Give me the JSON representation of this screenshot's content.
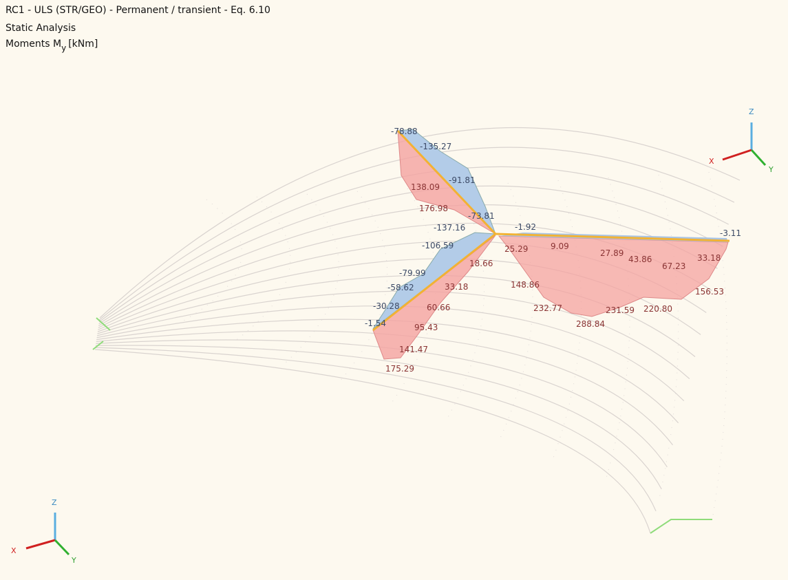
{
  "header": {
    "lines": [
      "RC1 - ULS (STR/GEO) - Permanent / transient - Eq. 6.10",
      "Static Analysis"
    ],
    "moments_label": {
      "text": "Moments M",
      "subscript": "y",
      "unit": "[kNm]"
    }
  },
  "result_labels": {
    "negative": [
      "-78.88",
      "-135.27",
      "-91.81",
      "-73.81",
      "-137.16",
      "-106.59",
      "-79.99",
      "-58.62",
      "-30.28",
      "-1.54",
      "-1.92",
      "-3.11"
    ],
    "positive": [
      "138.09",
      "176.98",
      "25.29",
      "9.09",
      "27.89",
      "43.86",
      "67.23",
      "33.18",
      "156.53",
      "148.86",
      "232.77",
      "288.84",
      "231.59",
      "220.80",
      "18.66",
      "33.18",
      "60.66",
      "95.43",
      "141.47",
      "175.29"
    ]
  },
  "axes_top": {
    "z": "Z",
    "x": "X",
    "y": "Y"
  },
  "axes_bottom": {
    "z": "Z",
    "x": "X",
    "y": "Y"
  }
}
